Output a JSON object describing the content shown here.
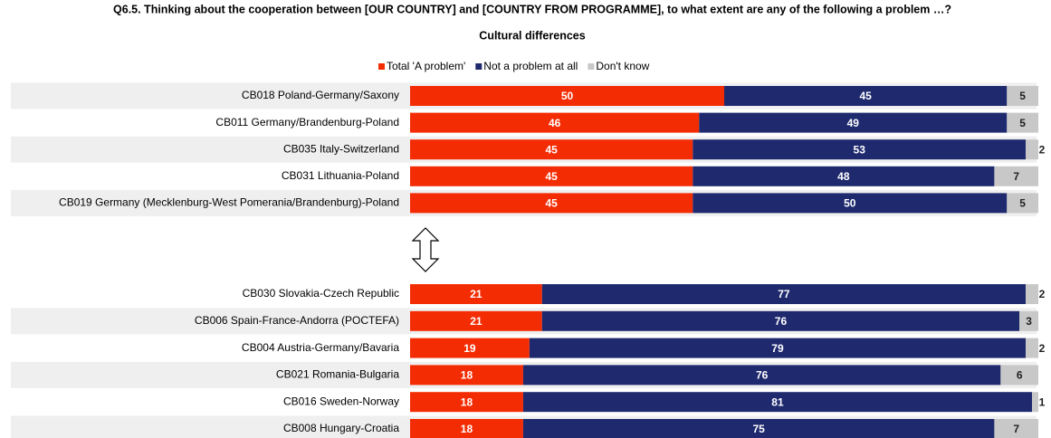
{
  "chart_data": {
    "type": "stacked-bar-horizontal",
    "title": "Q6.5. Thinking about the cooperation between [OUR COUNTRY] and [COUNTRY FROM PROGRAMME], to what extent are any of the following a problem …?",
    "subtitle": "Cultural differences",
    "categories": [
      "CB018 Poland-Germany/Saxony",
      "CB011 Germany/Brandenburg-Poland",
      "CB035 Italy-Switzerland",
      "CB031 Lithuania-Poland",
      "CB019 Germany (Mecklenburg-West Pomerania/Brandenburg)-Poland",
      "CB030 Slovakia-Czech Republic",
      "CB006 Spain-France-Andorra (POCTEFA)",
      "CB004 Austria-Germany/Bavaria",
      "CB021 Romania-Bulgaria",
      "CB016 Sweden-Norway",
      "CB008 Hungary-Croatia"
    ],
    "series": [
      {
        "name": "Total 'A problem'",
        "color": "#f42c04",
        "values": [
          50,
          46,
          45,
          45,
          45,
          21,
          21,
          19,
          18,
          18,
          18
        ]
      },
      {
        "name": "Not a problem at all",
        "color": "#1f2a6e",
        "values": [
          45,
          49,
          53,
          48,
          50,
          77,
          76,
          79,
          76,
          81,
          75
        ]
      },
      {
        "name": "Don't know",
        "color": "#c8c8c8",
        "values": [
          5,
          5,
          2,
          7,
          5,
          2,
          3,
          2,
          6,
          1,
          7
        ]
      }
    ],
    "xlim": [
      0,
      100
    ],
    "legend": "top"
  }
}
